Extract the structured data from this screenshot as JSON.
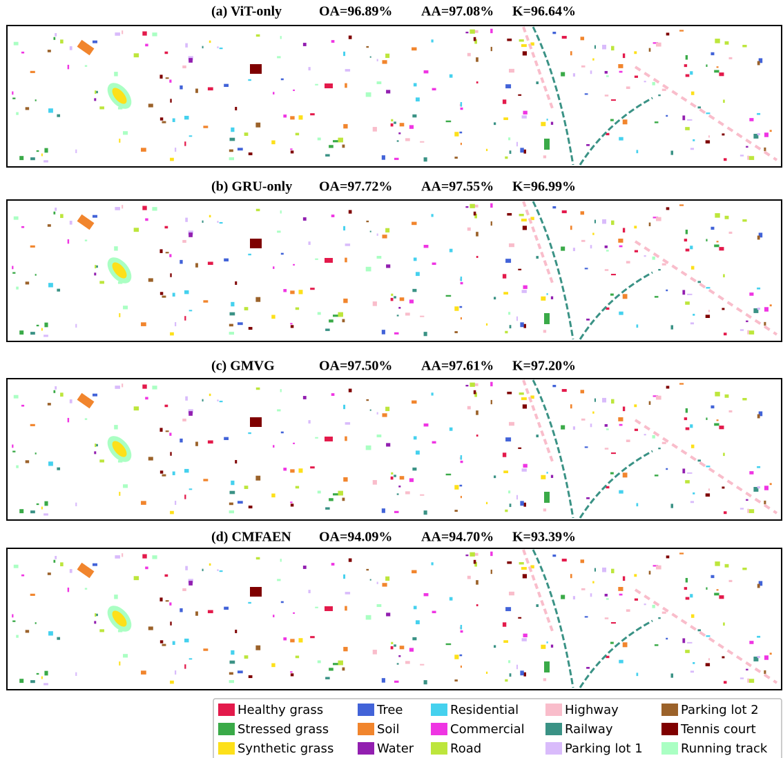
{
  "panels": [
    {
      "label": "(a) ViT-only",
      "oa": "OA=96.89%",
      "aa": "AA=97.08%",
      "k": "K=96.64%"
    },
    {
      "label": "(b) GRU-only",
      "oa": "OA=97.72%",
      "aa": "AA=97.55%",
      "k": "K=96.99%"
    },
    {
      "label": "(c) GMVG",
      "oa": "OA=97.50%",
      "aa": "AA=97.61%",
      "k": "K=97.20%"
    },
    {
      "label": "(d) CMFAEN",
      "oa": "OA=94.09%",
      "aa": "AA=94.70%",
      "k": "K=93.39%"
    }
  ],
  "legend": [
    {
      "name": "Healthy grass",
      "color": "#e31a4b"
    },
    {
      "name": "Stressed grass",
      "color": "#3aaa48"
    },
    {
      "name": "Synthetic grass",
      "color": "#fde01a"
    },
    {
      "name": "Tree",
      "color": "#4263d8"
    },
    {
      "name": "Soil",
      "color": "#f1852d"
    },
    {
      "name": "Water",
      "color": "#921fb0"
    },
    {
      "name": "Residential",
      "color": "#45d1ee"
    },
    {
      "name": "Commercial",
      "color": "#ef35e3"
    },
    {
      "name": "Road",
      "color": "#bde63c"
    },
    {
      "name": "Highway",
      "color": "#f9bdcb"
    },
    {
      "name": "Railway",
      "color": "#3a9285"
    },
    {
      "name": "Parking lot 1",
      "color": "#d9bbfb"
    },
    {
      "name": "Parking lot 2",
      "color": "#9b622a"
    },
    {
      "name": "Tennis court",
      "color": "#7f0000"
    },
    {
      "name": "Running track",
      "color": "#aaffc3"
    }
  ]
}
